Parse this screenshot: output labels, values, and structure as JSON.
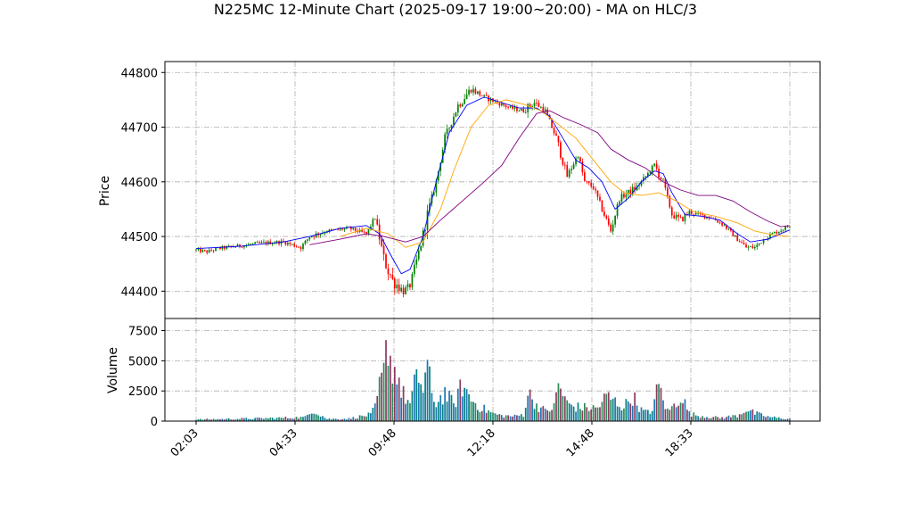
{
  "chart_data": [
    {
      "type": "candlestick",
      "title": "N225MC 12-Minute Chart (2025-09-17 19:00~20:00) - MA on HLC/3",
      "ylabel": "Price",
      "ylim": [
        44350,
        44820
      ],
      "yticks": [
        44400,
        44500,
        44600,
        44700,
        44800
      ],
      "grid": true,
      "xticks": [
        "02:03",
        "04:33",
        "09:48",
        "12:18",
        "14:48",
        "18:33"
      ],
      "colors": {
        "up": "#008000",
        "down": "#ff0000",
        "ma_short": "#0000ff",
        "ma_mid": "#ffa500",
        "ma_long": "#800080"
      },
      "price_path": [
        [
          0,
          44475
        ],
        [
          5,
          44472
        ],
        [
          10,
          44478
        ],
        [
          20,
          44483
        ],
        [
          30,
          44488
        ],
        [
          40,
          44490
        ],
        [
          48,
          44480
        ],
        [
          52,
          44500
        ],
        [
          60,
          44510
        ],
        [
          70,
          44515
        ],
        [
          78,
          44505
        ],
        [
          82,
          44535
        ],
        [
          86,
          44460
        ],
        [
          90,
          44420
        ],
        [
          95,
          44400
        ],
        [
          98,
          44410
        ],
        [
          102,
          44470
        ],
        [
          106,
          44540
        ],
        [
          110,
          44600
        ],
        [
          114,
          44680
        ],
        [
          120,
          44740
        ],
        [
          126,
          44770
        ],
        [
          132,
          44755
        ],
        [
          138,
          44745
        ],
        [
          144,
          44735
        ],
        [
          150,
          44730
        ],
        [
          155,
          44745
        ],
        [
          160,
          44730
        ],
        [
          165,
          44680
        ],
        [
          170,
          44610
        ],
        [
          175,
          44650
        ],
        [
          178,
          44600
        ],
        [
          182,
          44590
        ],
        [
          186,
          44550
        ],
        [
          190,
          44510
        ],
        [
          194,
          44570
        ],
        [
          198,
          44580
        ],
        [
          202,
          44590
        ],
        [
          206,
          44610
        ],
        [
          210,
          44630
        ],
        [
          214,
          44600
        ],
        [
          218,
          44540
        ],
        [
          222,
          44530
        ],
        [
          226,
          44545
        ],
        [
          230,
          44540
        ],
        [
          236,
          44535
        ],
        [
          242,
          44520
        ],
        [
          248,
          44495
        ],
        [
          252,
          44480
        ],
        [
          256,
          44480
        ],
        [
          260,
          44495
        ],
        [
          264,
          44505
        ],
        [
          268,
          44512
        ],
        [
          272,
          44520
        ]
      ],
      "moving_averages": [
        {
          "color": "ma_short",
          "points": [
            [
              0,
              44478
            ],
            [
              20,
              44482
            ],
            [
              40,
              44490
            ],
            [
              52,
              44500
            ],
            [
              66,
              44515
            ],
            [
              78,
              44520
            ],
            [
              84,
              44505
            ],
            [
              90,
              44460
            ],
            [
              94,
              44432
            ],
            [
              98,
              44440
            ],
            [
              104,
              44500
            ],
            [
              110,
              44600
            ],
            [
              116,
              44690
            ],
            [
              124,
              44740
            ],
            [
              132,
              44755
            ],
            [
              140,
              44745
            ],
            [
              148,
              44735
            ],
            [
              156,
              44735
            ],
            [
              162,
              44720
            ],
            [
              168,
              44680
            ],
            [
              174,
              44640
            ],
            [
              180,
              44625
            ],
            [
              186,
              44600
            ],
            [
              192,
              44550
            ],
            [
              198,
              44570
            ],
            [
              204,
              44600
            ],
            [
              210,
              44620
            ],
            [
              214,
              44615
            ],
            [
              218,
              44580
            ],
            [
              224,
              44540
            ],
            [
              232,
              44537
            ],
            [
              240,
              44530
            ],
            [
              248,
              44505
            ],
            [
              254,
              44490
            ],
            [
              262,
              44495
            ],
            [
              272,
              44512
            ]
          ]
        },
        {
          "color": "ma_mid",
          "points": [
            [
              66,
              44500
            ],
            [
              78,
              44515
            ],
            [
              88,
              44505
            ],
            [
              96,
              44480
            ],
            [
              104,
              44490
            ],
            [
              112,
              44550
            ],
            [
              118,
              44620
            ],
            [
              126,
              44700
            ],
            [
              134,
              44740
            ],
            [
              142,
              44750
            ],
            [
              150,
              44742
            ],
            [
              158,
              44730
            ],
            [
              166,
              44705
            ],
            [
              174,
              44680
            ],
            [
              182,
              44640
            ],
            [
              190,
              44600
            ],
            [
              196,
              44580
            ],
            [
              204,
              44575
            ],
            [
              212,
              44580
            ],
            [
              220,
              44565
            ],
            [
              228,
              44545
            ],
            [
              238,
              44537
            ],
            [
              248,
              44525
            ],
            [
              256,
              44510
            ],
            [
              264,
              44503
            ],
            [
              272,
              44500
            ]
          ]
        },
        {
          "color": "ma_long",
          "points": [
            [
              52,
              44485
            ],
            [
              66,
              44495
            ],
            [
              78,
              44505
            ],
            [
              86,
              44500
            ],
            [
              96,
              44490
            ],
            [
              104,
              44500
            ],
            [
              112,
              44530
            ],
            [
              122,
              44565
            ],
            [
              132,
              44600
            ],
            [
              140,
              44630
            ],
            [
              148,
              44680
            ],
            [
              156,
              44725
            ],
            [
              162,
              44730
            ],
            [
              168,
              44718
            ],
            [
              176,
              44705
            ],
            [
              184,
              44690
            ],
            [
              190,
              44660
            ],
            [
              198,
              44640
            ],
            [
              206,
              44625
            ],
            [
              214,
              44600
            ],
            [
              222,
              44585
            ],
            [
              230,
              44575
            ],
            [
              238,
              44575
            ],
            [
              246,
              44565
            ],
            [
              254,
              44545
            ],
            [
              262,
              44528
            ],
            [
              268,
              44518
            ],
            [
              272,
              44520
            ]
          ]
        }
      ]
    },
    {
      "type": "bar",
      "ylabel": "Volume",
      "ylim": [
        0,
        8500
      ],
      "yticks": [
        0,
        2500,
        5000,
        7500
      ],
      "grid": true,
      "volume_profile": [
        [
          0,
          150
        ],
        [
          30,
          250
        ],
        [
          50,
          350
        ],
        [
          52,
          700
        ],
        [
          53,
          1100
        ],
        [
          60,
          200
        ],
        [
          70,
          220
        ],
        [
          72,
          300
        ],
        [
          80,
          600
        ],
        [
          82,
          1200
        ],
        [
          84,
          3100
        ],
        [
          86,
          4400
        ],
        [
          88,
          7800
        ],
        [
          90,
          4200
        ],
        [
          92,
          5000
        ],
        [
          94,
          2600
        ],
        [
          96,
          2200
        ],
        [
          98,
          1500
        ],
        [
          100,
          3200
        ],
        [
          102,
          4100
        ],
        [
          104,
          2900
        ],
        [
          106,
          5300
        ],
        [
          108,
          2100
        ],
        [
          110,
          1700
        ],
        [
          114,
          2600
        ],
        [
          118,
          1500
        ],
        [
          122,
          3300
        ],
        [
          126,
          2000
        ],
        [
          130,
          1300
        ],
        [
          136,
          700
        ],
        [
          140,
          500
        ],
        [
          146,
          450
        ],
        [
          150,
          600
        ],
        [
          152,
          2600
        ],
        [
          156,
          1500
        ],
        [
          160,
          900
        ],
        [
          164,
          1300
        ],
        [
          166,
          3400
        ],
        [
          170,
          1600
        ],
        [
          174,
          1300
        ],
        [
          180,
          1200
        ],
        [
          184,
          1200
        ],
        [
          188,
          2300
        ],
        [
          192,
          1800
        ],
        [
          196,
          1300
        ],
        [
          200,
          2300
        ],
        [
          204,
          1000
        ],
        [
          208,
          700
        ],
        [
          212,
          3200
        ],
        [
          216,
          900
        ],
        [
          220,
          1600
        ],
        [
          222,
          2500
        ],
        [
          226,
          700
        ],
        [
          230,
          500
        ],
        [
          240,
          300
        ],
        [
          248,
          500
        ],
        [
          250,
          800
        ],
        [
          252,
          1100
        ],
        [
          256,
          700
        ],
        [
          262,
          400
        ],
        [
          266,
          300
        ],
        [
          272,
          200
        ]
      ]
    }
  ]
}
